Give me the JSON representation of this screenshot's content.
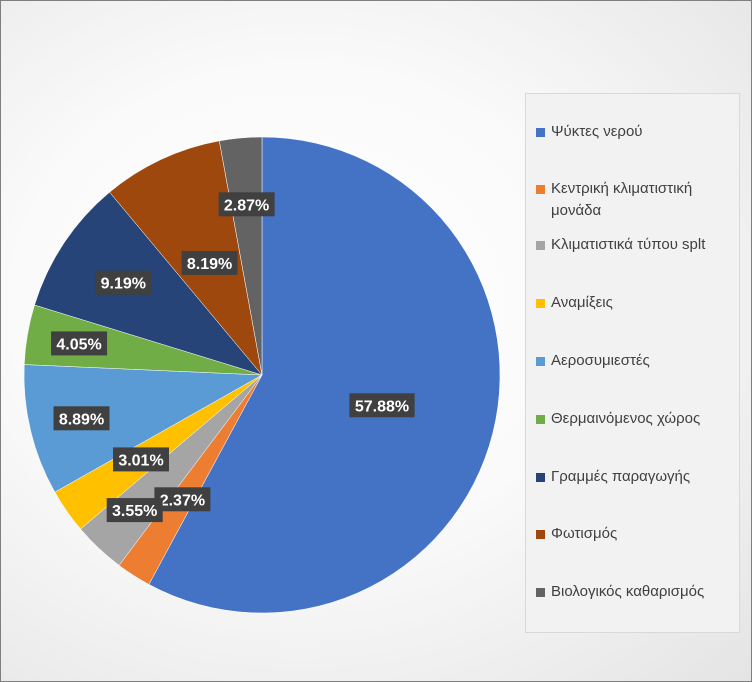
{
  "chart_data": {
    "type": "pie",
    "title": "",
    "categories": [
      "Ψύκτες νερού",
      "Κεντρική κλιματιστική μονάδα",
      "Κλιματιστικά τύπου splt",
      "Αναμίξεις",
      "Αεροσυμιεστές",
      "Θερμαινόμενος χώρος",
      "Γραμμές παραγωγής",
      "Φωτισμός",
      "Βιολογικός καθαρισμός"
    ],
    "values": [
      57.88,
      2.37,
      3.55,
      3.01,
      8.89,
      4.05,
      9.19,
      8.19,
      2.87
    ],
    "labels": [
      "57.88%",
      "2.37%",
      "3.55%",
      "3.01%",
      "8.89%",
      "4.05%",
      "9.19%",
      "8.19%",
      "2.87%"
    ],
    "colors": [
      "#4472C4",
      "#ED7D31",
      "#A5A5A5",
      "#FFC000",
      "#5B9BD5",
      "#70AD47",
      "#264478",
      "#9E480E",
      "#636363"
    ],
    "legend_position": "right",
    "start_angle": "12 o'clock",
    "direction": "clockwise"
  }
}
